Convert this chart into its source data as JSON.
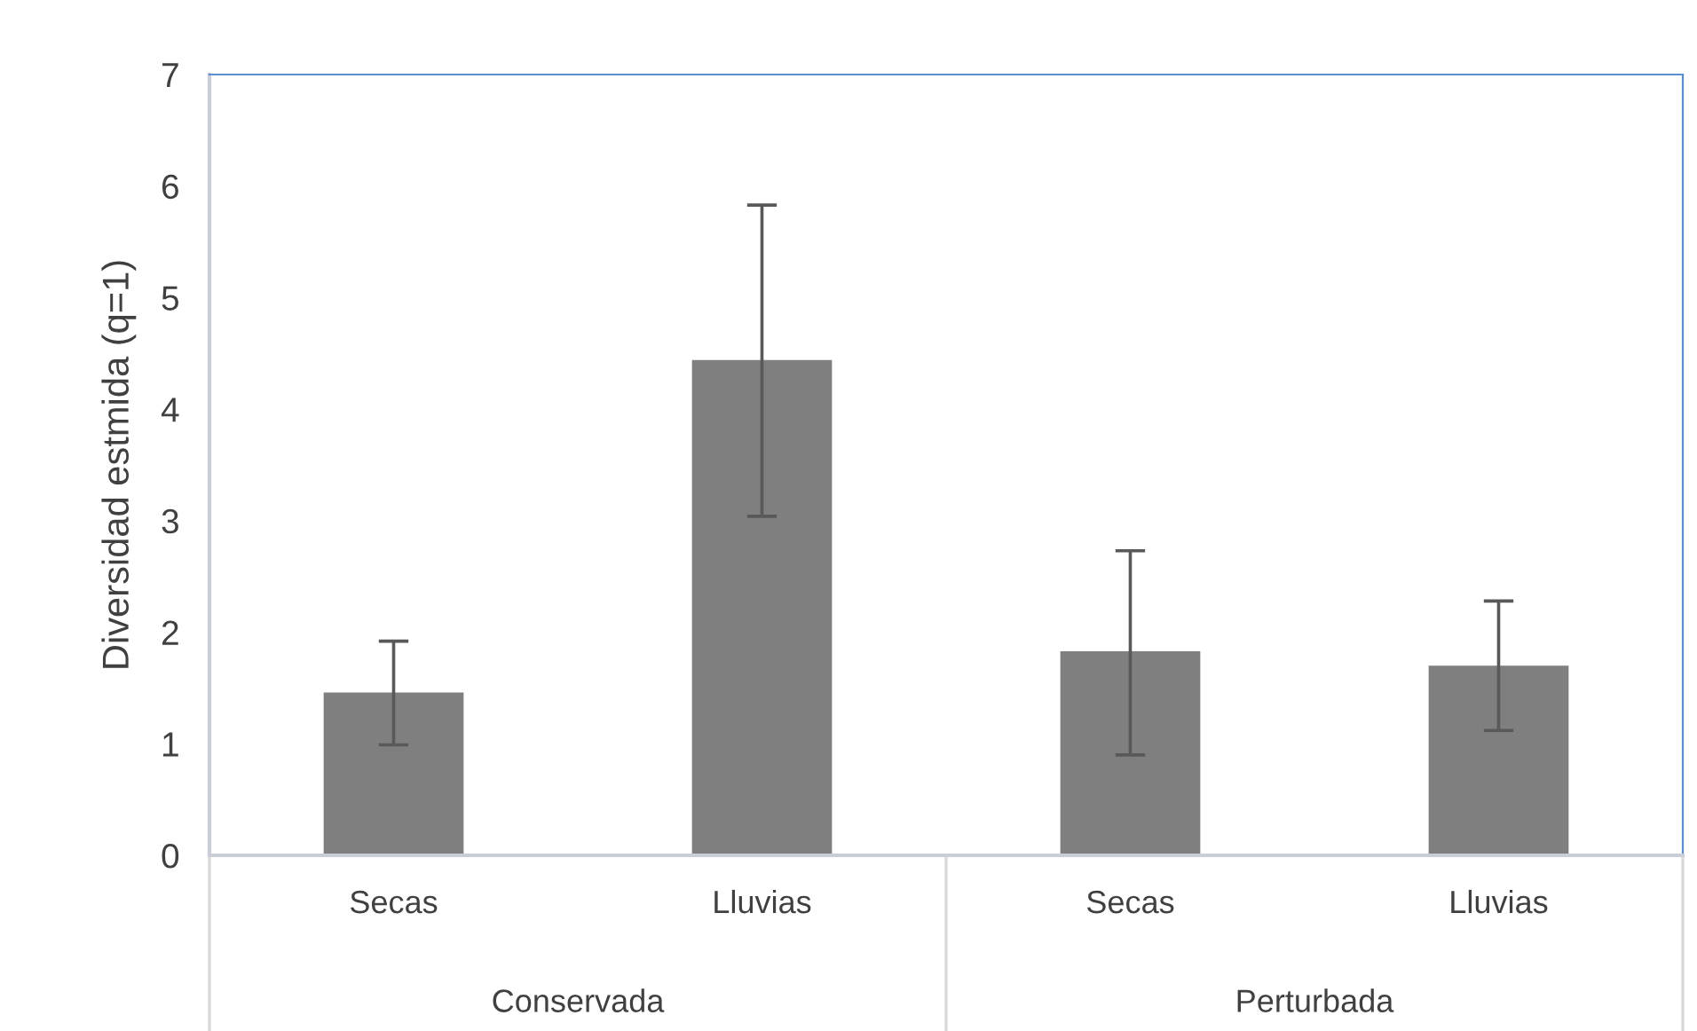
{
  "chart_data": {
    "type": "bar",
    "ylabel": "Diversidad estmida (q=1)",
    "categories": [
      "Secas",
      "Lluvias",
      "Secas",
      "Lluvias"
    ],
    "values": [
      1.46,
      4.44,
      1.83,
      1.7
    ],
    "errors": [
      [
        0.99,
        1.92
      ],
      [
        3.04,
        5.83
      ],
      [
        0.9,
        2.73
      ],
      [
        1.12,
        2.28
      ]
    ],
    "color": "#7f7f7f",
    "ylim": [
      0,
      7
    ],
    "yticks": [
      0,
      1,
      2,
      3,
      4,
      5,
      6,
      7
    ],
    "grid": false,
    "annotations": [
      "Conservada",
      "Perturbada"
    ]
  }
}
